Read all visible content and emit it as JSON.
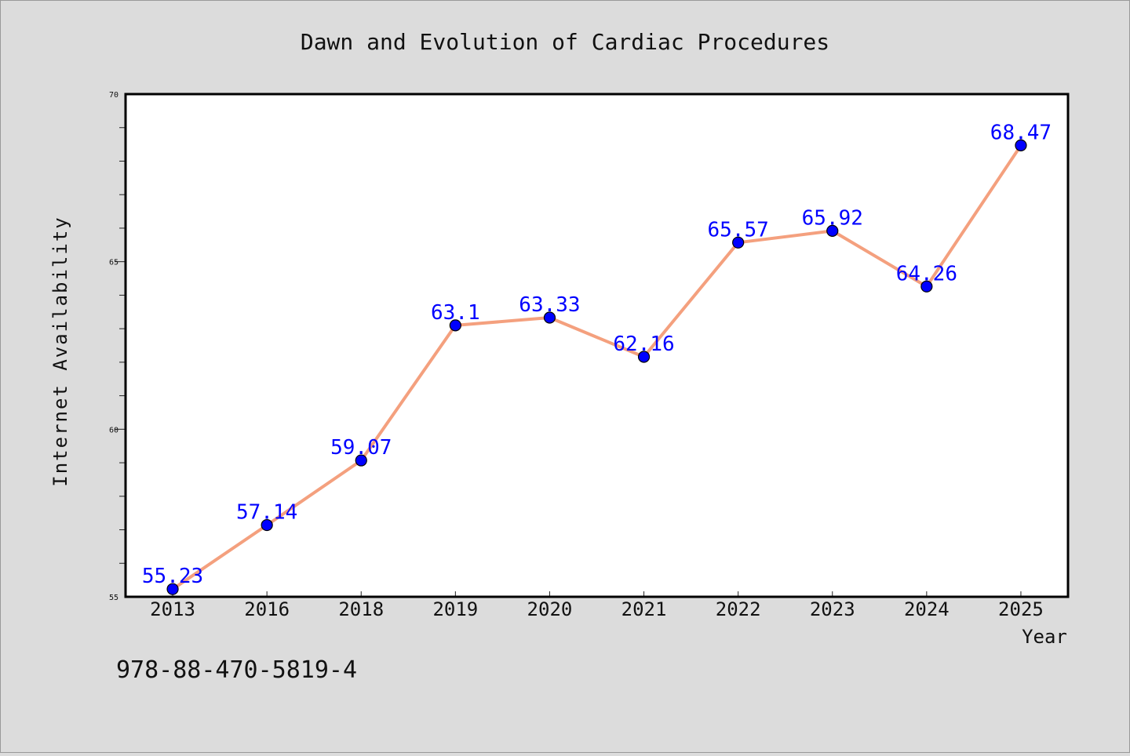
{
  "chart_data": {
    "type": "line",
    "title": "Dawn and Evolution of Cardiac Procedures",
    "xlabel": "Year",
    "ylabel": "Internet Availability",
    "categories": [
      "2013",
      "2016",
      "2018",
      "2019",
      "2020",
      "2021",
      "2022",
      "2023",
      "2024",
      "2025"
    ],
    "series": [
      {
        "values": [
          55.23,
          57.14,
          59.07,
          63.1,
          63.33,
          62.16,
          65.57,
          65.92,
          64.26,
          68.47
        ],
        "labels": [
          "55.23",
          "57.14",
          "59.07",
          "63.1",
          "63.33",
          "62.16",
          "65.57",
          "65.92",
          "64.26",
          "68.47"
        ],
        "line_color": "#f4a07e",
        "marker_color": "#0000ff"
      }
    ],
    "ylim": [
      55,
      70
    ],
    "y_ticks": [
      "55",
      "60",
      "65",
      "70"
    ],
    "grid": false,
    "legend": "none"
  },
  "annotation": {
    "text": "978-88-470-5819-4"
  },
  "colors": {
    "background": "#dcdcdc",
    "plot_area": "#ffffff",
    "data_label": "#0000ff",
    "text": "#111111"
  }
}
